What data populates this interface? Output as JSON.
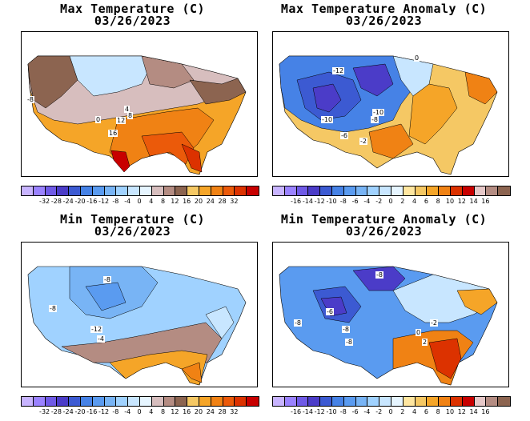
{
  "panels": [
    {
      "id": "max-temp",
      "title": "Max Temperature (C)",
      "date": "03/26/2023",
      "colors": [
        "#c8b4ff",
        "#9a82ff",
        "#6f5ae6",
        "#4b3cc8",
        "#3c5ad2",
        "#4682e6",
        "#5a9bf0",
        "#78b4f5",
        "#a0d2ff",
        "#c8e6ff",
        "#e6f5ff",
        "#d7bebe",
        "#b48c82",
        "#8c6450",
        "#f5c864",
        "#f5a528",
        "#f08214",
        "#eb5a0a",
        "#dc3200",
        "#c80000"
      ],
      "tick_labels": [
        "-32",
        "-28",
        "-24",
        "-20",
        "-16",
        "-12",
        "-8",
        "-4",
        "0",
        "4",
        "8",
        "12",
        "16",
        "20",
        "24",
        "28",
        "32"
      ],
      "annotations": [
        "-8",
        "0",
        "4",
        "12",
        "16",
        "8"
      ]
    },
    {
      "id": "max-anom",
      "title": "Max Temperature Anomaly (C)",
      "date": "03/26/2023",
      "colors": [
        "#c8b4ff",
        "#9a82ff",
        "#6f5ae6",
        "#4b3cc8",
        "#3c5ad2",
        "#4682e6",
        "#5a9bf0",
        "#78b4f5",
        "#a0d2ff",
        "#c8e6ff",
        "#e6f5ff",
        "#ffe6a0",
        "#f5c864",
        "#f5a528",
        "#f08214",
        "#dc3200",
        "#c80000",
        "#e6c8c8",
        "#b48c82",
        "#8c6450"
      ],
      "tick_labels": [
        "-16",
        "-14",
        "-12",
        "-10",
        "-8",
        "-6",
        "-4",
        "-2",
        "0",
        "2",
        "4",
        "6",
        "8",
        "10",
        "12",
        "14",
        "16"
      ],
      "annotations": [
        "-12",
        "-10",
        "-10",
        "-8",
        "-6",
        "-2",
        "0"
      ]
    },
    {
      "id": "min-temp",
      "title": "Min Temperature (C)",
      "date": "03/26/2023",
      "colors": [
        "#c8b4ff",
        "#9a82ff",
        "#6f5ae6",
        "#4b3cc8",
        "#3c5ad2",
        "#4682e6",
        "#5a9bf0",
        "#78b4f5",
        "#a0d2ff",
        "#c8e6ff",
        "#e6f5ff",
        "#d7bebe",
        "#b48c82",
        "#8c6450",
        "#f5c864",
        "#f5a528",
        "#f08214",
        "#eb5a0a",
        "#dc3200",
        "#c80000"
      ],
      "tick_labels": [
        "-32",
        "-28",
        "-24",
        "-20",
        "-16",
        "-12",
        "-8",
        "-4",
        "0",
        "4",
        "8",
        "12",
        "16",
        "20",
        "24",
        "28",
        "32"
      ],
      "annotations": [
        "-8",
        "-8",
        "-12",
        "-4"
      ]
    },
    {
      "id": "min-anom",
      "title": "Min Temperature Anomaly (C)",
      "date": "03/26/2023",
      "colors": [
        "#c8b4ff",
        "#9a82ff",
        "#6f5ae6",
        "#4b3cc8",
        "#3c5ad2",
        "#4682e6",
        "#5a9bf0",
        "#78b4f5",
        "#a0d2ff",
        "#c8e6ff",
        "#e6f5ff",
        "#ffe6a0",
        "#f5c864",
        "#f5a528",
        "#f08214",
        "#dc3200",
        "#c80000",
        "#e6c8c8",
        "#b48c82",
        "#8c6450"
      ],
      "tick_labels": [
        "-16",
        "-14",
        "-12",
        "-10",
        "-8",
        "-6",
        "-4",
        "-2",
        "0",
        "2",
        "4",
        "6",
        "8",
        "10",
        "12",
        "14",
        "16"
      ],
      "annotations": [
        "-8",
        "-8",
        "-8",
        "-8",
        "-6",
        "-2",
        "0",
        "2"
      ]
    }
  ]
}
